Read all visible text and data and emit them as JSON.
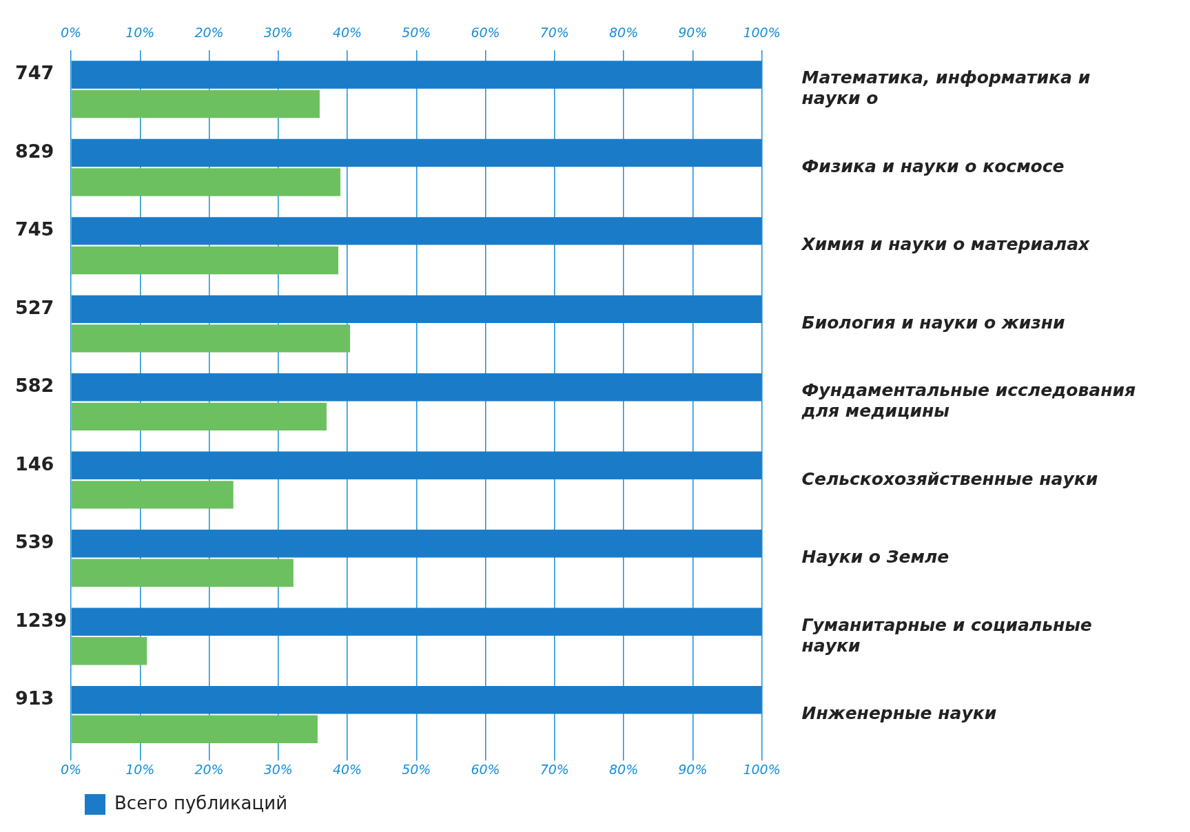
{
  "chart_data": {
    "type": "bar",
    "orientation": "horizontal",
    "categories": [
      "Математика, информатика и науки о",
      "Физика и науки о космосе",
      "Химия и науки о материалах",
      "Биология и науки о жизни",
      "Фундаментальные исследования для медицины",
      "Сельскохозяйственные науки",
      "Науки о Земле",
      "Гуманитарные и социальные науки",
      "Инженерные науки"
    ],
    "series": [
      {
        "name": "Всего публикаций",
        "color": "#1a7cc8",
        "values": [
          100,
          100,
          100,
          100,
          100,
          100,
          100,
          100,
          100
        ]
      },
      {
        "color": "#6cc060",
        "values": [
          36,
          39,
          38.7,
          40.4,
          37,
          23.5,
          32.2,
          11,
          35.7
        ]
      }
    ],
    "xlim": [
      0,
      100
    ],
    "xticks": [
      {
        "value": 0,
        "label": "0%"
      },
      {
        "value": 10,
        "label": "10%"
      },
      {
        "value": 20,
        "label": "20%"
      },
      {
        "value": 30,
        "label": "30%"
      },
      {
        "value": 40,
        "label": "40%"
      },
      {
        "value": 50,
        "label": "50%"
      },
      {
        "value": 60,
        "label": "60%"
      },
      {
        "value": 70,
        "label": "70%"
      },
      {
        "value": 80,
        "label": "80%"
      },
      {
        "value": 90,
        "label": "90%"
      },
      {
        "value": 100,
        "label": "100%"
      }
    ],
    "x2lim": [
      0,
      100
    ],
    "x2ticks": [
      {
        "value": 0,
        "label": "0%"
      },
      {
        "value": 10,
        "label": "10%"
      },
      {
        "value": 20,
        "label": "20%"
      },
      {
        "value": 30,
        "label": "30%"
      },
      {
        "value": 40,
        "label": "40%"
      },
      {
        "value": 50,
        "label": "50%"
      },
      {
        "value": 60,
        "label": "60%"
      },
      {
        "value": 70,
        "label": "70%"
      },
      {
        "value": 80,
        "label": "80%"
      },
      {
        "value": 90,
        "label": "90%"
      },
      {
        "value": 100,
        "label": "100%"
      }
    ],
    "grid": "x",
    "legend": "bottom left",
    "annotations": [
      "747",
      "829",
      "745",
      "527",
      "582",
      "146",
      "539",
      "1239",
      "913"
    ]
  }
}
